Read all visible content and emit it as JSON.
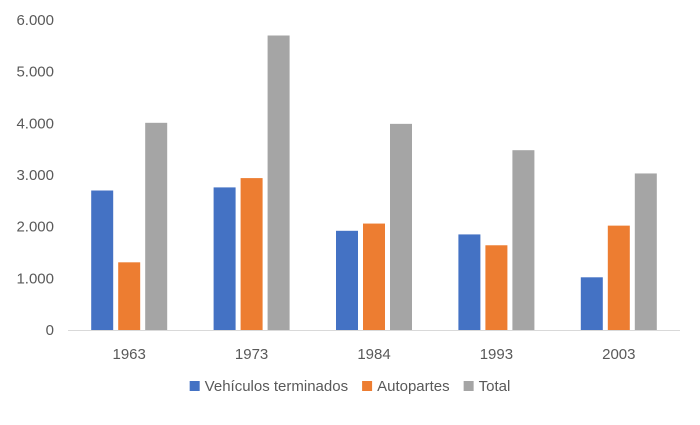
{
  "chart_data": {
    "type": "bar",
    "categories": [
      "1963",
      "1973",
      "1984",
      "1993",
      "2003"
    ],
    "series": [
      {
        "name": "Vehículos terminados",
        "color": "#4472C4",
        "values": [
          2700,
          2760,
          1920,
          1850,
          1020
        ]
      },
      {
        "name": "Autopartes",
        "color": "#ED7D31",
        "values": [
          1310,
          2940,
          2060,
          1640,
          2020
        ]
      },
      {
        "name": "Total",
        "color": "#A5A5A5",
        "values": [
          4010,
          5700,
          3990,
          3480,
          3030
        ]
      }
    ],
    "ylim": [
      0,
      6000
    ],
    "yticks": [
      0,
      1000,
      2000,
      3000,
      4000,
      5000,
      6000
    ],
    "ytick_labels": [
      "0",
      "1.000",
      "2.000",
      "3.000",
      "4.000",
      "5.000",
      "6.000"
    ],
    "grid": false,
    "legend_position": "bottom",
    "title": "",
    "xlabel": "",
    "ylabel": ""
  }
}
